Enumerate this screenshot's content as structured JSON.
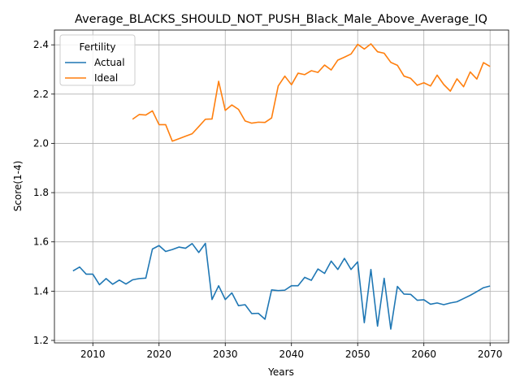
{
  "chart_data": {
    "type": "line",
    "title": "Average_BLACKS_SHOULD_NOT_PUSH_Black_Male_Above_Average_IQ",
    "xlabel": "Years",
    "ylabel": "Score(1-4)",
    "xlim": [
      2004.2,
      2072.8
    ],
    "ylim": [
      1.19,
      2.46
    ],
    "xticks": [
      2010,
      2020,
      2030,
      2040,
      2050,
      2060,
      2070
    ],
    "yticks": [
      1.2,
      1.4,
      1.6,
      1.8,
      2.0,
      2.2,
      2.4
    ],
    "ytick_labels": [
      "1.2",
      "1.4",
      "1.6",
      "1.8",
      "2.0",
      "2.2",
      "2.4"
    ],
    "grid": true,
    "legend": {
      "title": "Fertility",
      "placement": "upper-left"
    },
    "series": [
      {
        "name": "Actual",
        "color": "#1f77b4",
        "x": [
          2007,
          2008,
          2009,
          2010,
          2011,
          2012,
          2013,
          2014,
          2015,
          2016,
          2017,
          2018,
          2019,
          2020,
          2021,
          2022,
          2023,
          2024,
          2025,
          2026,
          2027,
          2028,
          2029,
          2030,
          2031,
          2032,
          2033,
          2034,
          2035,
          2036,
          2037,
          2038,
          2039,
          2040,
          2041,
          2042,
          2043,
          2044,
          2045,
          2046,
          2047,
          2048,
          2049,
          2050,
          2051,
          2052,
          2053,
          2054,
          2055,
          2056,
          2057,
          2058,
          2059,
          2060,
          2061,
          2062,
          2063,
          2064,
          2065,
          2066,
          2067,
          2068,
          2069,
          2070
        ],
        "y": [
          1.482,
          1.498,
          1.469,
          1.469,
          1.426,
          1.451,
          1.428,
          1.445,
          1.429,
          1.446,
          1.451,
          1.453,
          1.571,
          1.585,
          1.561,
          1.569,
          1.579,
          1.574,
          1.593,
          1.557,
          1.594,
          1.366,
          1.422,
          1.366,
          1.393,
          1.341,
          1.345,
          1.309,
          1.31,
          1.286,
          1.405,
          1.402,
          1.404,
          1.422,
          1.422,
          1.456,
          1.444,
          1.49,
          1.472,
          1.522,
          1.488,
          1.533,
          1.488,
          1.519,
          1.272,
          1.488,
          1.258,
          1.452,
          1.246,
          1.419,
          1.388,
          1.387,
          1.363,
          1.365,
          1.347,
          1.352,
          1.345,
          1.352,
          1.357,
          1.37,
          1.383,
          1.398,
          1.414,
          1.421
        ]
      },
      {
        "name": "Ideal",
        "color": "#ff7f0e",
        "x": [
          2016,
          2017,
          2018,
          2019,
          2020,
          2021,
          2022,
          2023,
          2024,
          2025,
          2026,
          2027,
          2028,
          2029,
          2030,
          2031,
          2032,
          2033,
          2034,
          2035,
          2036,
          2037,
          2038,
          2039,
          2040,
          2041,
          2042,
          2043,
          2044,
          2045,
          2046,
          2047,
          2048,
          2049,
          2050,
          2051,
          2052,
          2053,
          2054,
          2055,
          2056,
          2057,
          2058,
          2059,
          2060,
          2061,
          2062,
          2063,
          2064,
          2065,
          2066,
          2067,
          2068,
          2069,
          2070
        ],
        "y": [
          2.098,
          2.117,
          2.115,
          2.132,
          2.076,
          2.076,
          2.009,
          2.019,
          2.029,
          2.039,
          2.068,
          2.098,
          2.099,
          2.252,
          2.134,
          2.156,
          2.138,
          2.091,
          2.082,
          2.086,
          2.085,
          2.103,
          2.233,
          2.273,
          2.238,
          2.285,
          2.279,
          2.295,
          2.288,
          2.318,
          2.298,
          2.338,
          2.35,
          2.363,
          2.402,
          2.383,
          2.404,
          2.372,
          2.366,
          2.329,
          2.317,
          2.273,
          2.264,
          2.236,
          2.246,
          2.233,
          2.277,
          2.239,
          2.212,
          2.262,
          2.23,
          2.29,
          2.261,
          2.328,
          2.312
        ]
      }
    ]
  }
}
